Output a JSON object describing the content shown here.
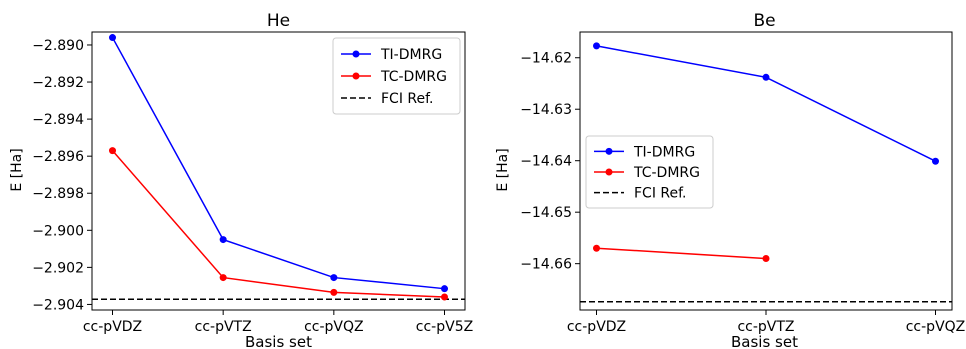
{
  "chart_data": [
    {
      "type": "line",
      "title": "He",
      "xlabel": "Basis set",
      "ylabel": "",
      "categories": [
        "cc-pVDZ",
        "cc-pVTZ",
        "cc-pVQZ",
        "cc-pV5Z"
      ],
      "ylim": [
        -2.9043,
        -2.8893
      ],
      "yticks": [
        -2.89,
        -2.892,
        -2.894,
        -2.896,
        -2.898,
        -2.9,
        -2.902,
        -2.904
      ],
      "ytick_labels": [
        "−2.890",
        "−2.892",
        "−2.894",
        "−2.896",
        "−2.898",
        "−2.900",
        "−2.902",
        "−2.904"
      ],
      "series": [
        {
          "name": "TI-DMRG",
          "color": "#0000ff",
          "marker": "circle",
          "values": [
            -2.8896,
            -2.9005,
            -2.90255,
            -2.90315
          ]
        },
        {
          "name": "TC-DMRG",
          "color": "#ff0000",
          "marker": "circle",
          "values": [
            -2.8957,
            -2.90255,
            -2.90335,
            -2.9036
          ]
        }
      ],
      "reference": {
        "name": "FCI Ref.",
        "value": -2.90372,
        "color": "#000000",
        "style": "dashed"
      },
      "legend": "top-right",
      "grid": false
    },
    {
      "type": "line",
      "title": "Be",
      "xlabel": "Basis set",
      "ylabel": "E [Ha]",
      "categories": [
        "cc-pVDZ",
        "cc-pVTZ",
        "cc-pVQZ"
      ],
      "ylim": [
        -14.669,
        -14.615
      ],
      "yticks": [
        -14.62,
        -14.63,
        -14.64,
        -14.65,
        -14.66
      ],
      "ytick_labels": [
        "−14.62",
        "−14.63",
        "−14.64",
        "−14.65",
        "−14.66"
      ],
      "series": [
        {
          "name": "TI-DMRG",
          "color": "#0000ff",
          "marker": "circle",
          "values": [
            -14.6177,
            -14.6238,
            -14.6401
          ]
        },
        {
          "name": "TC-DMRG",
          "color": "#ff0000",
          "marker": "circle",
          "values": [
            -14.657,
            -14.659,
            null
          ]
        }
      ],
      "reference": {
        "name": "FCI Ref.",
        "value": -14.6674,
        "color": "#000000",
        "style": "dashed"
      },
      "legend": "center-left",
      "grid": false
    }
  ],
  "side_labels": {
    "left_ylabel_partial": "E [Ha]"
  }
}
